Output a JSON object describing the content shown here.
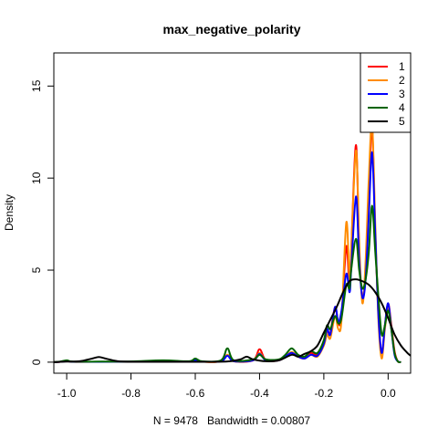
{
  "chart_data": {
    "type": "line",
    "title": "max_negative_polarity",
    "xlabel": "N = 9478   Bandwidth = 0.00807",
    "ylabel": "Density",
    "xlim": [
      -1.04,
      0.07
    ],
    "ylim": [
      -0.6,
      16.8
    ],
    "x_ticks": [
      -1.0,
      -0.8,
      -0.6,
      -0.4,
      -0.2,
      0.0
    ],
    "x_tick_labels": [
      "-1.0",
      "-0.8",
      "-0.6",
      "-0.4",
      "-0.2",
      "0.0"
    ],
    "y_ticks": [
      0,
      5,
      10,
      15
    ],
    "y_tick_labels": [
      "0",
      "5",
      "10",
      "15"
    ],
    "grid": false,
    "legend_position": "top-right",
    "series": [
      {
        "name": "1",
        "color": "#ff0000",
        "points": [
          [
            -1.04,
            0.0
          ],
          [
            -1.02,
            0.02
          ],
          [
            -1.0,
            0.08
          ],
          [
            -0.98,
            0.02
          ],
          [
            -0.9,
            0.02
          ],
          [
            -0.8,
            0.03
          ],
          [
            -0.7,
            0.05
          ],
          [
            -0.62,
            0.03
          ],
          [
            -0.6,
            0.15
          ],
          [
            -0.58,
            0.03
          ],
          [
            -0.52,
            0.05
          ],
          [
            -0.5,
            0.4
          ],
          [
            -0.48,
            0.05
          ],
          [
            -0.42,
            0.1
          ],
          [
            -0.4,
            0.7
          ],
          [
            -0.38,
            0.1
          ],
          [
            -0.34,
            0.1
          ],
          [
            -0.32,
            0.3
          ],
          [
            -0.3,
            0.5
          ],
          [
            -0.28,
            0.3
          ],
          [
            -0.26,
            0.2
          ],
          [
            -0.24,
            0.5
          ],
          [
            -0.22,
            0.4
          ],
          [
            -0.2,
            1.0
          ],
          [
            -0.19,
            1.7
          ],
          [
            -0.18,
            1.6
          ],
          [
            -0.165,
            3.0
          ],
          [
            -0.155,
            2.1
          ],
          [
            -0.145,
            2.5
          ],
          [
            -0.13,
            6.3
          ],
          [
            -0.12,
            4.0
          ],
          [
            -0.115,
            6.0
          ],
          [
            -0.1,
            11.8
          ],
          [
            -0.09,
            6.0
          ],
          [
            -0.08,
            3.5
          ],
          [
            -0.07,
            5.0
          ],
          [
            -0.06,
            9.0
          ],
          [
            -0.05,
            12.8
          ],
          [
            -0.04,
            7.0
          ],
          [
            -0.03,
            2.5
          ],
          [
            -0.02,
            0.5
          ],
          [
            -0.01,
            2.0
          ],
          [
            0.0,
            3.2
          ],
          [
            0.01,
            2.0
          ],
          [
            0.02,
            0.6
          ],
          [
            0.03,
            0.05
          ],
          [
            0.04,
            0.0
          ]
        ]
      },
      {
        "name": "2",
        "color": "#ff8c00",
        "points": [
          [
            -1.04,
            0.0
          ],
          [
            -1.02,
            0.02
          ],
          [
            -1.0,
            0.06
          ],
          [
            -0.98,
            0.02
          ],
          [
            -0.9,
            0.02
          ],
          [
            -0.8,
            0.03
          ],
          [
            -0.7,
            0.05
          ],
          [
            -0.62,
            0.03
          ],
          [
            -0.6,
            0.15
          ],
          [
            -0.58,
            0.03
          ],
          [
            -0.52,
            0.05
          ],
          [
            -0.5,
            0.4
          ],
          [
            -0.48,
            0.05
          ],
          [
            -0.42,
            0.1
          ],
          [
            -0.4,
            0.5
          ],
          [
            -0.38,
            0.1
          ],
          [
            -0.34,
            0.1
          ],
          [
            -0.32,
            0.3
          ],
          [
            -0.3,
            0.55
          ],
          [
            -0.28,
            0.3
          ],
          [
            -0.26,
            0.2
          ],
          [
            -0.24,
            0.4
          ],
          [
            -0.22,
            0.3
          ],
          [
            -0.2,
            0.9
          ],
          [
            -0.19,
            1.5
          ],
          [
            -0.18,
            1.3
          ],
          [
            -0.165,
            2.5
          ],
          [
            -0.155,
            1.8
          ],
          [
            -0.145,
            2.3
          ],
          [
            -0.13,
            7.6
          ],
          [
            -0.12,
            4.5
          ],
          [
            -0.115,
            6.0
          ],
          [
            -0.1,
            11.5
          ],
          [
            -0.09,
            6.5
          ],
          [
            -0.08,
            3.2
          ],
          [
            -0.07,
            5.5
          ],
          [
            -0.06,
            10.0
          ],
          [
            -0.05,
            13.0
          ],
          [
            -0.04,
            7.5
          ],
          [
            -0.03,
            2.2
          ],
          [
            -0.02,
            0.2
          ],
          [
            -0.01,
            1.8
          ],
          [
            0.0,
            3.0
          ],
          [
            0.01,
            1.8
          ],
          [
            0.02,
            0.5
          ],
          [
            0.03,
            0.05
          ],
          [
            0.04,
            0.0
          ]
        ]
      },
      {
        "name": "3",
        "color": "#0000ff",
        "points": [
          [
            -1.04,
            0.0
          ],
          [
            -1.02,
            0.02
          ],
          [
            -1.0,
            0.05
          ],
          [
            -0.98,
            0.02
          ],
          [
            -0.9,
            0.02
          ],
          [
            -0.8,
            0.03
          ],
          [
            -0.7,
            0.05
          ],
          [
            -0.62,
            0.03
          ],
          [
            -0.6,
            0.1
          ],
          [
            -0.58,
            0.03
          ],
          [
            -0.52,
            0.05
          ],
          [
            -0.5,
            0.35
          ],
          [
            -0.48,
            0.05
          ],
          [
            -0.42,
            0.1
          ],
          [
            -0.4,
            0.45
          ],
          [
            -0.38,
            0.1
          ],
          [
            -0.34,
            0.1
          ],
          [
            -0.32,
            0.3
          ],
          [
            -0.3,
            0.5
          ],
          [
            -0.28,
            0.3
          ],
          [
            -0.26,
            0.2
          ],
          [
            -0.24,
            0.4
          ],
          [
            -0.22,
            0.35
          ],
          [
            -0.2,
            1.0
          ],
          [
            -0.19,
            1.8
          ],
          [
            -0.18,
            1.5
          ],
          [
            -0.165,
            3.0
          ],
          [
            -0.155,
            2.2
          ],
          [
            -0.145,
            2.8
          ],
          [
            -0.13,
            4.8
          ],
          [
            -0.12,
            3.8
          ],
          [
            -0.115,
            5.0
          ],
          [
            -0.1,
            9.0
          ],
          [
            -0.09,
            5.5
          ],
          [
            -0.08,
            3.5
          ],
          [
            -0.07,
            4.5
          ],
          [
            -0.06,
            8.0
          ],
          [
            -0.05,
            11.4
          ],
          [
            -0.04,
            7.0
          ],
          [
            -0.03,
            2.5
          ],
          [
            -0.02,
            0.5
          ],
          [
            -0.01,
            2.0
          ],
          [
            0.0,
            3.2
          ],
          [
            0.01,
            1.8
          ],
          [
            0.02,
            0.4
          ],
          [
            0.03,
            0.05
          ],
          [
            0.04,
            0.0
          ]
        ]
      },
      {
        "name": "4",
        "color": "#006400",
        "points": [
          [
            -1.04,
            0.0
          ],
          [
            -1.02,
            0.03
          ],
          [
            -1.0,
            0.1
          ],
          [
            -0.98,
            0.03
          ],
          [
            -0.9,
            0.03
          ],
          [
            -0.8,
            0.04
          ],
          [
            -0.7,
            0.1
          ],
          [
            -0.62,
            0.05
          ],
          [
            -0.6,
            0.2
          ],
          [
            -0.58,
            0.05
          ],
          [
            -0.52,
            0.1
          ],
          [
            -0.5,
            0.75
          ],
          [
            -0.48,
            0.1
          ],
          [
            -0.42,
            0.15
          ],
          [
            -0.4,
            0.4
          ],
          [
            -0.38,
            0.15
          ],
          [
            -0.34,
            0.15
          ],
          [
            -0.32,
            0.4
          ],
          [
            -0.3,
            0.75
          ],
          [
            -0.28,
            0.4
          ],
          [
            -0.26,
            0.3
          ],
          [
            -0.24,
            0.6
          ],
          [
            -0.22,
            0.5
          ],
          [
            -0.2,
            1.2
          ],
          [
            -0.19,
            2.0
          ],
          [
            -0.18,
            1.8
          ],
          [
            -0.165,
            2.5
          ],
          [
            -0.155,
            2.1
          ],
          [
            -0.145,
            2.4
          ],
          [
            -0.13,
            4.2
          ],
          [
            -0.12,
            4.0
          ],
          [
            -0.115,
            5.0
          ],
          [
            -0.1,
            6.7
          ],
          [
            -0.09,
            5.0
          ],
          [
            -0.08,
            4.0
          ],
          [
            -0.07,
            4.5
          ],
          [
            -0.06,
            6.0
          ],
          [
            -0.05,
            8.5
          ],
          [
            -0.04,
            6.0
          ],
          [
            -0.03,
            3.5
          ],
          [
            -0.02,
            1.5
          ],
          [
            -0.01,
            2.0
          ],
          [
            0.0,
            2.8
          ],
          [
            0.01,
            1.8
          ],
          [
            0.02,
            0.5
          ],
          [
            0.03,
            0.05
          ],
          [
            0.04,
            0.0
          ]
        ]
      },
      {
        "name": "5",
        "color": "#000000",
        "points": [
          [
            -1.04,
            0.0
          ],
          [
            -1.02,
            0.02
          ],
          [
            -1.0,
            0.03
          ],
          [
            -0.96,
            0.05
          ],
          [
            -0.92,
            0.2
          ],
          [
            -0.9,
            0.28
          ],
          [
            -0.88,
            0.2
          ],
          [
            -0.84,
            0.05
          ],
          [
            -0.8,
            0.02
          ],
          [
            -0.7,
            0.02
          ],
          [
            -0.6,
            0.02
          ],
          [
            -0.5,
            0.04
          ],
          [
            -0.46,
            0.15
          ],
          [
            -0.44,
            0.3
          ],
          [
            -0.42,
            0.15
          ],
          [
            -0.38,
            0.05
          ],
          [
            -0.34,
            0.1
          ],
          [
            -0.3,
            0.4
          ],
          [
            -0.28,
            0.3
          ],
          [
            -0.26,
            0.45
          ],
          [
            -0.24,
            0.6
          ],
          [
            -0.22,
            0.9
          ],
          [
            -0.2,
            1.6
          ],
          [
            -0.18,
            2.3
          ],
          [
            -0.16,
            3.0
          ],
          [
            -0.14,
            3.8
          ],
          [
            -0.12,
            4.4
          ],
          [
            -0.1,
            4.5
          ],
          [
            -0.08,
            4.4
          ],
          [
            -0.06,
            4.2
          ],
          [
            -0.04,
            3.8
          ],
          [
            -0.02,
            3.2
          ],
          [
            0.0,
            2.4
          ],
          [
            0.02,
            1.5
          ],
          [
            0.04,
            0.9
          ],
          [
            0.06,
            0.5
          ],
          [
            0.07,
            0.35
          ]
        ]
      }
    ]
  }
}
